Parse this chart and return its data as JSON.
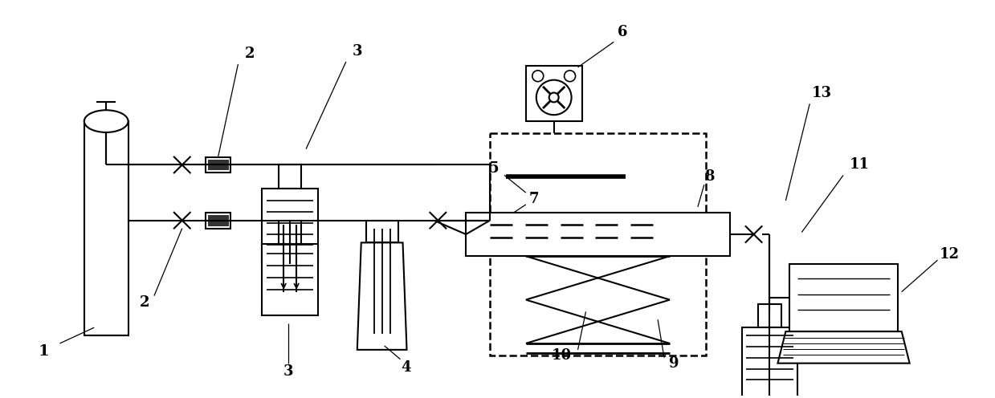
{
  "figsize": [
    12.39,
    4.96
  ],
  "dpi": 100,
  "bg_color": "#ffffff",
  "line_color": "#000000",
  "lw": 1.5
}
